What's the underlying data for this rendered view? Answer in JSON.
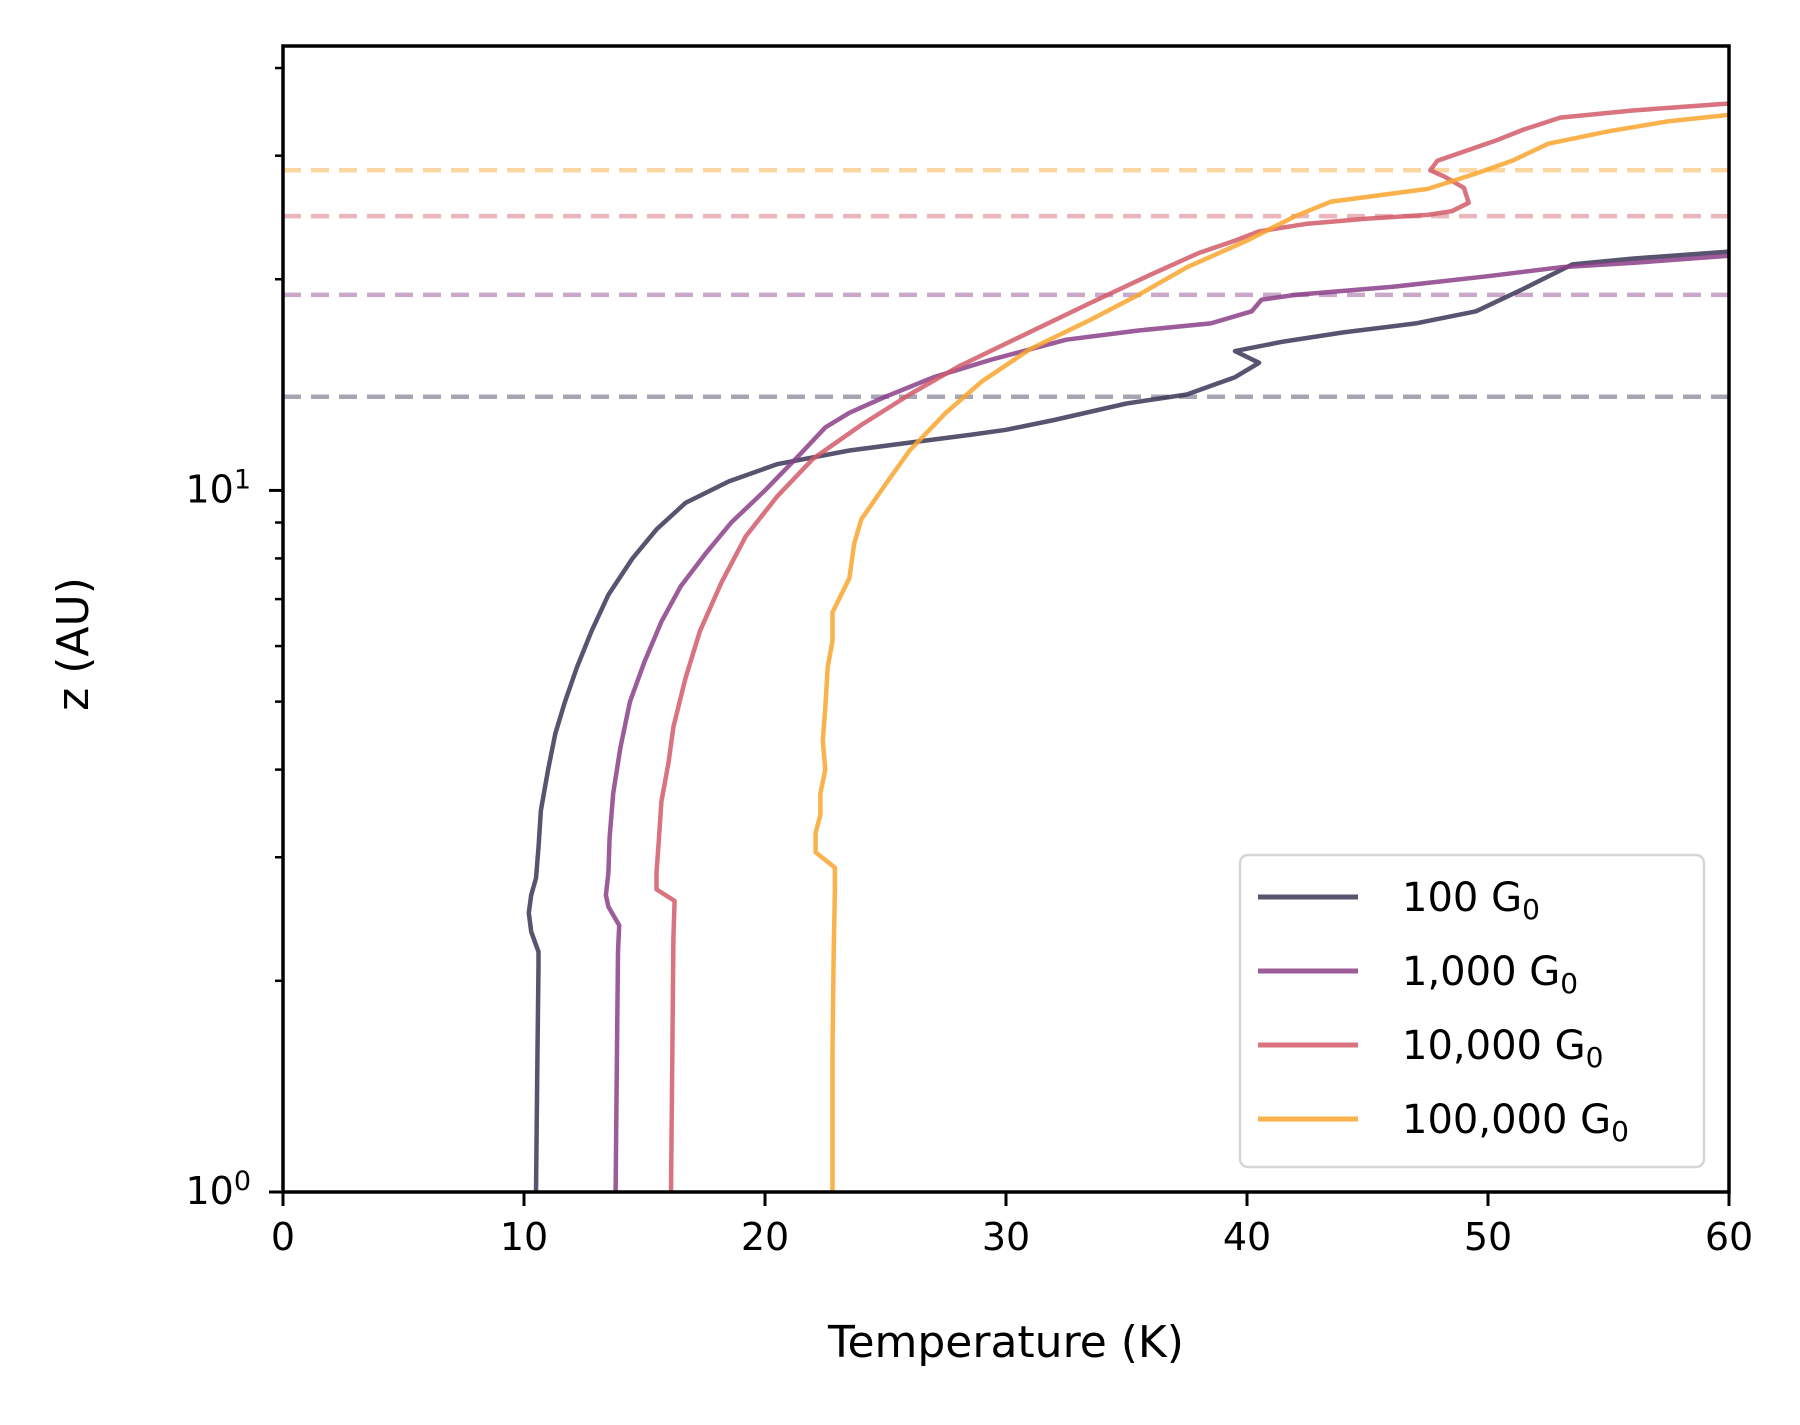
{
  "chart_data": {
    "type": "line",
    "title": "",
    "xlabel": "Temperature (K)",
    "ylabel": "z (AU)",
    "xlim": [
      0,
      60
    ],
    "ylim": [
      1,
      43
    ],
    "yscale": "log",
    "grid": false,
    "legend_position": "bottom-right",
    "x_ticks": [
      "0",
      "10",
      "20",
      "30",
      "40",
      "50",
      "60"
    ],
    "x_tick_values": [
      0,
      10,
      20,
      30,
      40,
      50,
      60
    ],
    "y_major_ticks": [
      {
        "value": 1,
        "base": "10",
        "exp": "0"
      },
      {
        "value": 10,
        "base": "10",
        "exp": "1"
      }
    ],
    "y_minor_ticks": [
      2,
      3,
      4,
      5,
      6,
      7,
      8,
      9,
      20,
      30,
      40
    ],
    "series": [
      {
        "name": "100 G",
        "subscript": "0",
        "color": "#3b3656",
        "dashed_z": 13.6,
        "points": [
          [
            10.5,
            1.0
          ],
          [
            10.55,
            1.5
          ],
          [
            10.6,
            2.1
          ],
          [
            10.6,
            2.2
          ],
          [
            10.3,
            2.35
          ],
          [
            10.2,
            2.5
          ],
          [
            10.3,
            2.65
          ],
          [
            10.5,
            2.8
          ],
          [
            10.6,
            3.1
          ],
          [
            10.7,
            3.5
          ],
          [
            11.0,
            4.0
          ],
          [
            11.3,
            4.5
          ],
          [
            11.7,
            5.0
          ],
          [
            12.2,
            5.6
          ],
          [
            12.8,
            6.3
          ],
          [
            13.5,
            7.1
          ],
          [
            14.5,
            8.0
          ],
          [
            15.5,
            8.8
          ],
          [
            16.7,
            9.6
          ],
          [
            18.5,
            10.3
          ],
          [
            20.5,
            10.9
          ],
          [
            23.5,
            11.4
          ],
          [
            26.0,
            11.7
          ],
          [
            28.5,
            12.0
          ],
          [
            30.0,
            12.2
          ],
          [
            32.0,
            12.6
          ],
          [
            35.0,
            13.3
          ],
          [
            37.5,
            13.7
          ],
          [
            39.5,
            14.5
          ],
          [
            40.5,
            15.2
          ],
          [
            39.5,
            15.8
          ],
          [
            41.5,
            16.3
          ],
          [
            44.0,
            16.8
          ],
          [
            47.0,
            17.3
          ],
          [
            49.5,
            18.0
          ],
          [
            51.5,
            19.4
          ],
          [
            53.5,
            21.0
          ],
          [
            56.0,
            21.4
          ],
          [
            60.0,
            21.9
          ]
        ]
      },
      {
        "name": "1,000 G",
        "subscript": "0",
        "color": "#8a3f87",
        "dashed_z": 19.0,
        "points": [
          [
            13.8,
            1.0
          ],
          [
            13.85,
            1.5
          ],
          [
            13.9,
            2.2
          ],
          [
            13.95,
            2.4
          ],
          [
            13.5,
            2.55
          ],
          [
            13.4,
            2.65
          ],
          [
            13.5,
            2.85
          ],
          [
            13.55,
            3.2
          ],
          [
            13.7,
            3.7
          ],
          [
            14.0,
            4.3
          ],
          [
            14.4,
            5.0
          ],
          [
            15.0,
            5.7
          ],
          [
            15.7,
            6.5
          ],
          [
            16.5,
            7.3
          ],
          [
            17.5,
            8.1
          ],
          [
            18.6,
            9.0
          ],
          [
            20.0,
            10.0
          ],
          [
            21.5,
            11.3
          ],
          [
            22.5,
            12.3
          ],
          [
            23.5,
            12.9
          ],
          [
            25.0,
            13.6
          ],
          [
            27.0,
            14.5
          ],
          [
            29.5,
            15.4
          ],
          [
            32.5,
            16.4
          ],
          [
            35.5,
            16.9
          ],
          [
            38.5,
            17.3
          ],
          [
            40.2,
            18.0
          ],
          [
            40.6,
            18.7
          ],
          [
            42.0,
            19.0
          ],
          [
            46.0,
            19.5
          ],
          [
            50.0,
            20.2
          ],
          [
            53.0,
            20.8
          ],
          [
            56.0,
            21.1
          ],
          [
            60.0,
            21.6
          ]
        ]
      },
      {
        "name": "10,000 G",
        "subscript": "0",
        "color": "#d15b69",
        "dashed_z": 24.6,
        "points": [
          [
            16.1,
            1.0
          ],
          [
            16.15,
            1.5
          ],
          [
            16.2,
            2.3
          ],
          [
            16.25,
            2.6
          ],
          [
            15.5,
            2.7
          ],
          [
            15.5,
            2.85
          ],
          [
            15.6,
            3.2
          ],
          [
            15.7,
            3.6
          ],
          [
            16.0,
            4.1
          ],
          [
            16.2,
            4.6
          ],
          [
            16.7,
            5.4
          ],
          [
            17.3,
            6.3
          ],
          [
            18.2,
            7.4
          ],
          [
            19.2,
            8.6
          ],
          [
            20.5,
            9.8
          ],
          [
            22.0,
            11.1
          ],
          [
            24.0,
            12.4
          ],
          [
            26.0,
            13.7
          ],
          [
            28.0,
            15.0
          ],
          [
            30.5,
            16.5
          ],
          [
            33.5,
            18.5
          ],
          [
            36.0,
            20.3
          ],
          [
            38.0,
            21.8
          ],
          [
            39.5,
            22.7
          ],
          [
            40.5,
            23.4
          ],
          [
            42.5,
            24.0
          ],
          [
            45.0,
            24.4
          ],
          [
            47.5,
            24.7
          ],
          [
            48.5,
            25.0
          ],
          [
            49.2,
            25.7
          ],
          [
            49.0,
            27.0
          ],
          [
            48.2,
            28.0
          ],
          [
            47.6,
            28.6
          ],
          [
            47.9,
            29.5
          ],
          [
            50.3,
            31.5
          ],
          [
            51.5,
            32.7
          ],
          [
            53.0,
            34.0
          ],
          [
            56.0,
            34.8
          ],
          [
            60.0,
            35.6
          ]
        ]
      },
      {
        "name": "100,000 G",
        "subscript": "0",
        "color": "#f9a52e",
        "dashed_z": 28.6,
        "points": [
          [
            22.8,
            1.0
          ],
          [
            22.8,
            1.6
          ],
          [
            22.85,
            2.2
          ],
          [
            22.9,
            2.7
          ],
          [
            22.9,
            2.9
          ],
          [
            22.1,
            3.05
          ],
          [
            22.1,
            3.25
          ],
          [
            22.3,
            3.45
          ],
          [
            22.3,
            3.7
          ],
          [
            22.5,
            4.0
          ],
          [
            22.4,
            4.4
          ],
          [
            22.5,
            4.9
          ],
          [
            22.6,
            5.6
          ],
          [
            22.8,
            6.1
          ],
          [
            22.8,
            6.7
          ],
          [
            23.5,
            7.5
          ],
          [
            23.7,
            8.4
          ],
          [
            24.0,
            9.1
          ],
          [
            25.0,
            10.2
          ],
          [
            26.0,
            11.4
          ],
          [
            27.5,
            12.9
          ],
          [
            29.0,
            14.3
          ],
          [
            31.0,
            15.9
          ],
          [
            33.5,
            17.5
          ],
          [
            35.5,
            19.0
          ],
          [
            37.5,
            20.8
          ],
          [
            40.0,
            22.7
          ],
          [
            42.0,
            24.6
          ],
          [
            43.5,
            25.8
          ],
          [
            47.5,
            26.9
          ],
          [
            49.5,
            28.3
          ],
          [
            51.0,
            29.5
          ],
          [
            52.5,
            31.2
          ],
          [
            55.0,
            32.5
          ],
          [
            57.5,
            33.6
          ],
          [
            60.0,
            34.3
          ]
        ]
      }
    ]
  }
}
